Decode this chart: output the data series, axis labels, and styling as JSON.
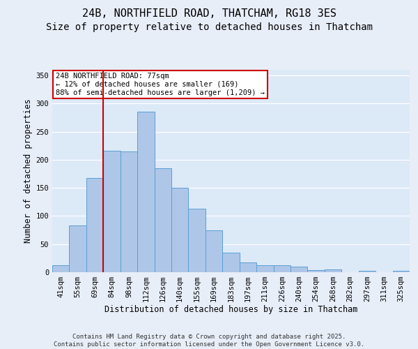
{
  "title_line1": "24B, NORTHFIELD ROAD, THATCHAM, RG18 3ES",
  "title_line2": "Size of property relative to detached houses in Thatcham",
  "xlabel": "Distribution of detached houses by size in Thatcham",
  "ylabel": "Number of detached properties",
  "categories": [
    "41sqm",
    "55sqm",
    "69sqm",
    "84sqm",
    "98sqm",
    "112sqm",
    "126sqm",
    "140sqm",
    "155sqm",
    "169sqm",
    "183sqm",
    "197sqm",
    "211sqm",
    "226sqm",
    "240sqm",
    "254sqm",
    "268sqm",
    "282sqm",
    "297sqm",
    "311sqm",
    "325sqm"
  ],
  "values": [
    12,
    83,
    167,
    216,
    215,
    286,
    185,
    150,
    113,
    75,
    35,
    18,
    13,
    12,
    10,
    4,
    5,
    0,
    2,
    0,
    3
  ],
  "bar_color": "#aec6e8",
  "bar_edge_color": "#5a9fd4",
  "bg_color": "#dce9f7",
  "grid_color": "#ffffff",
  "vline_color": "#cc0000",
  "vline_x": 2.5,
  "annotation_text": "24B NORTHFIELD ROAD: 77sqm\n← 12% of detached houses are smaller (169)\n88% of semi-detached houses are larger (1,209) →",
  "annotation_box_edgecolor": "#cc0000",
  "annotation_box_facecolor": "#ffffff",
  "ylim": [
    0,
    360
  ],
  "yticks": [
    0,
    50,
    100,
    150,
    200,
    250,
    300,
    350
  ],
  "fig_bg_color": "#e8eef8",
  "footer_line1": "Contains HM Land Registry data © Crown copyright and database right 2025.",
  "footer_line2": "Contains public sector information licensed under the Open Government Licence v3.0.",
  "title_fontsize": 11,
  "subtitle_fontsize": 10,
  "label_fontsize": 8.5,
  "tick_fontsize": 7.5,
  "footer_fontsize": 6.5,
  "annot_fontsize": 7.5
}
